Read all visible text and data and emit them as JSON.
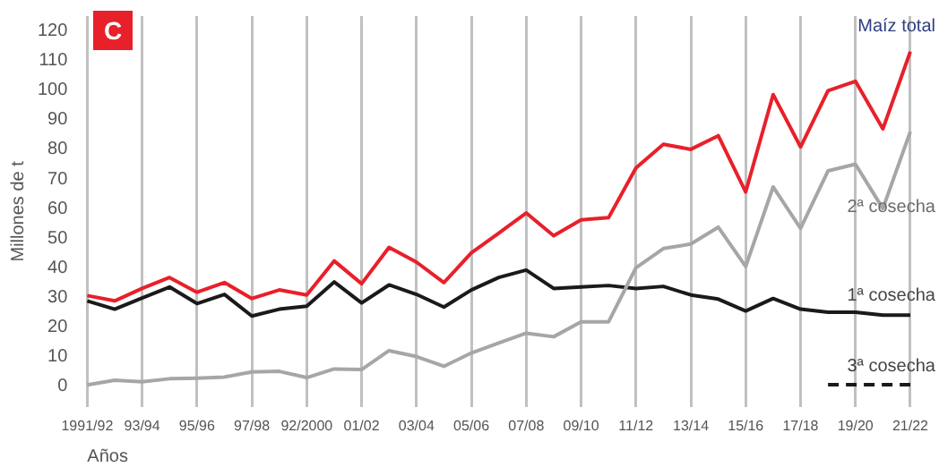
{
  "chart_data": {
    "type": "line",
    "xlabel": "Años",
    "ylabel": "Millones de t",
    "annotations": [
      "C"
    ],
    "categories": [
      "1991/92",
      null,
      "93/94",
      null,
      "95/96",
      null,
      "97/98",
      null,
      "92/2000",
      null,
      "01/02",
      null,
      "03/04",
      null,
      "05/06",
      null,
      "07/08",
      null,
      "09/10",
      null,
      "11/12",
      null,
      "13/14",
      null,
      "15/16",
      null,
      "17/18",
      null,
      "19/20",
      null,
      "21/22"
    ],
    "series": [
      {
        "name": "Maíz total",
        "color": "#e8202a",
        "values": [
          30.6,
          28.8,
          33,
          36.7,
          31.7,
          35,
          29.6,
          32.5,
          30.8,
          42.3,
          34.6,
          46.9,
          41.9,
          35,
          45,
          51.7,
          58.5,
          50.8,
          56.2,
          56.9,
          73.7,
          81.7,
          80,
          84.6,
          65.6,
          98.5,
          80.8,
          99.8,
          103,
          86.9,
          113
        ]
      },
      {
        "name": "2ª cosecha",
        "color": "#a6a6a6",
        "values": [
          0.4,
          2,
          1.5,
          2.5,
          2.7,
          3.1,
          4.8,
          5,
          2.9,
          5.8,
          5.6,
          12,
          10,
          6.7,
          11.2,
          14.6,
          17.9,
          16.7,
          21.7,
          21.7,
          40,
          46.5,
          48,
          53.7,
          40.4,
          67.3,
          53.3,
          72.7,
          75,
          60,
          86
        ]
      },
      {
        "name": "1ª cosecha",
        "color": "#1a1a1a",
        "values": [
          28.8,
          26,
          29.8,
          33.5,
          27.9,
          31,
          23.7,
          26,
          27,
          35.2,
          28.1,
          34.2,
          31,
          26.7,
          32.5,
          36.7,
          39.2,
          33,
          33.5,
          34,
          33,
          33.7,
          30.8,
          29.4,
          25.4,
          29.6,
          26,
          25,
          25,
          24,
          24
        ]
      },
      {
        "name": "3ª cosecha",
        "color": "#1a1a1a",
        "line_style": "dashed",
        "values": [
          null,
          null,
          null,
          null,
          null,
          null,
          null,
          null,
          null,
          null,
          null,
          null,
          null,
          null,
          null,
          null,
          null,
          null,
          null,
          null,
          null,
          null,
          null,
          null,
          null,
          null,
          null,
          0.5,
          0.5,
          0.5,
          0.5
        ]
      }
    ],
    "ylim": [
      -7,
      125
    ],
    "yticks": [
      0,
      10,
      20,
      30,
      40,
      50,
      60,
      70,
      80,
      90,
      100,
      110,
      120
    ],
    "grid": "x",
    "legend": false
  }
}
